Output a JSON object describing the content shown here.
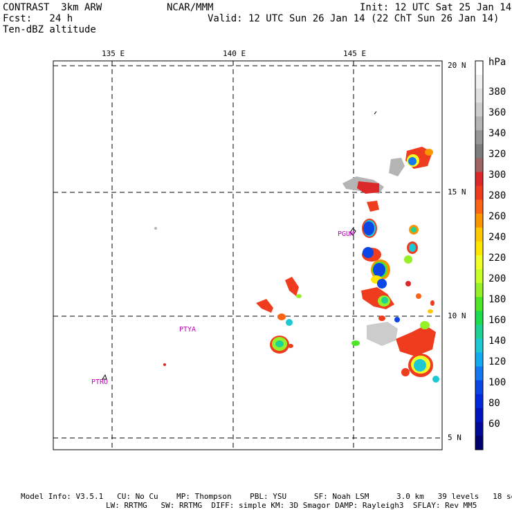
{
  "header": {
    "line1_left": "CONTRAST  3km ARW",
    "line1_center": "NCAR/MMM",
    "line1_right": "Init: 12 UTC Sat 25 Jan 14",
    "line2_left": "Fcst:   24 h",
    "line2_right": "Valid: 12 UTC Sun 26 Jan 14 (22 ChT Sun 26 Jan 14)",
    "line3_left": "Ten-dBZ altitude"
  },
  "map": {
    "lon_labels": [
      "135 E",
      "140 E",
      "145 E"
    ],
    "lat_labels": [
      "20 N",
      "15 N",
      "10 N",
      "5 N"
    ],
    "stations": [
      "PGUM",
      "PTYA",
      "PTRO"
    ]
  },
  "colorbar": {
    "unit": "hPa",
    "labels": [
      "380",
      "360",
      "340",
      "320",
      "300",
      "280",
      "260",
      "240",
      "220",
      "200",
      "180",
      "160",
      "140",
      "120",
      "100",
      "80",
      "60"
    ],
    "colors": [
      "#ffffff",
      "#f0f0f0",
      "#e0e0e0",
      "#cccccc",
      "#b4b4b4",
      "#969696",
      "#7d7d7d",
      "#a06464",
      "#dc2828",
      "#f03c1e",
      "#fa6414",
      "#fa9600",
      "#ffc800",
      "#ffe600",
      "#f0ff28",
      "#c8ff28",
      "#96f028",
      "#50e628",
      "#1edc50",
      "#1ed296",
      "#1ec8d2",
      "#14aaf0",
      "#1478f0",
      "#0a46e6",
      "#0028dc",
      "#0014be",
      "#000a96",
      "#00006e"
    ]
  },
  "footer": {
    "line1": "Model Info: V3.5.1   CU: No Cu    MP: Thompson    PBL: YSU      SF: Noah LSM      3.0 km   39 levels   18 sec",
    "line2": "LW: RRTMG   SW: RRTMG  DIFF: simple KM: 3D Smagor DAMP: Rayleigh3  SFLAY: Rev MM5"
  }
}
